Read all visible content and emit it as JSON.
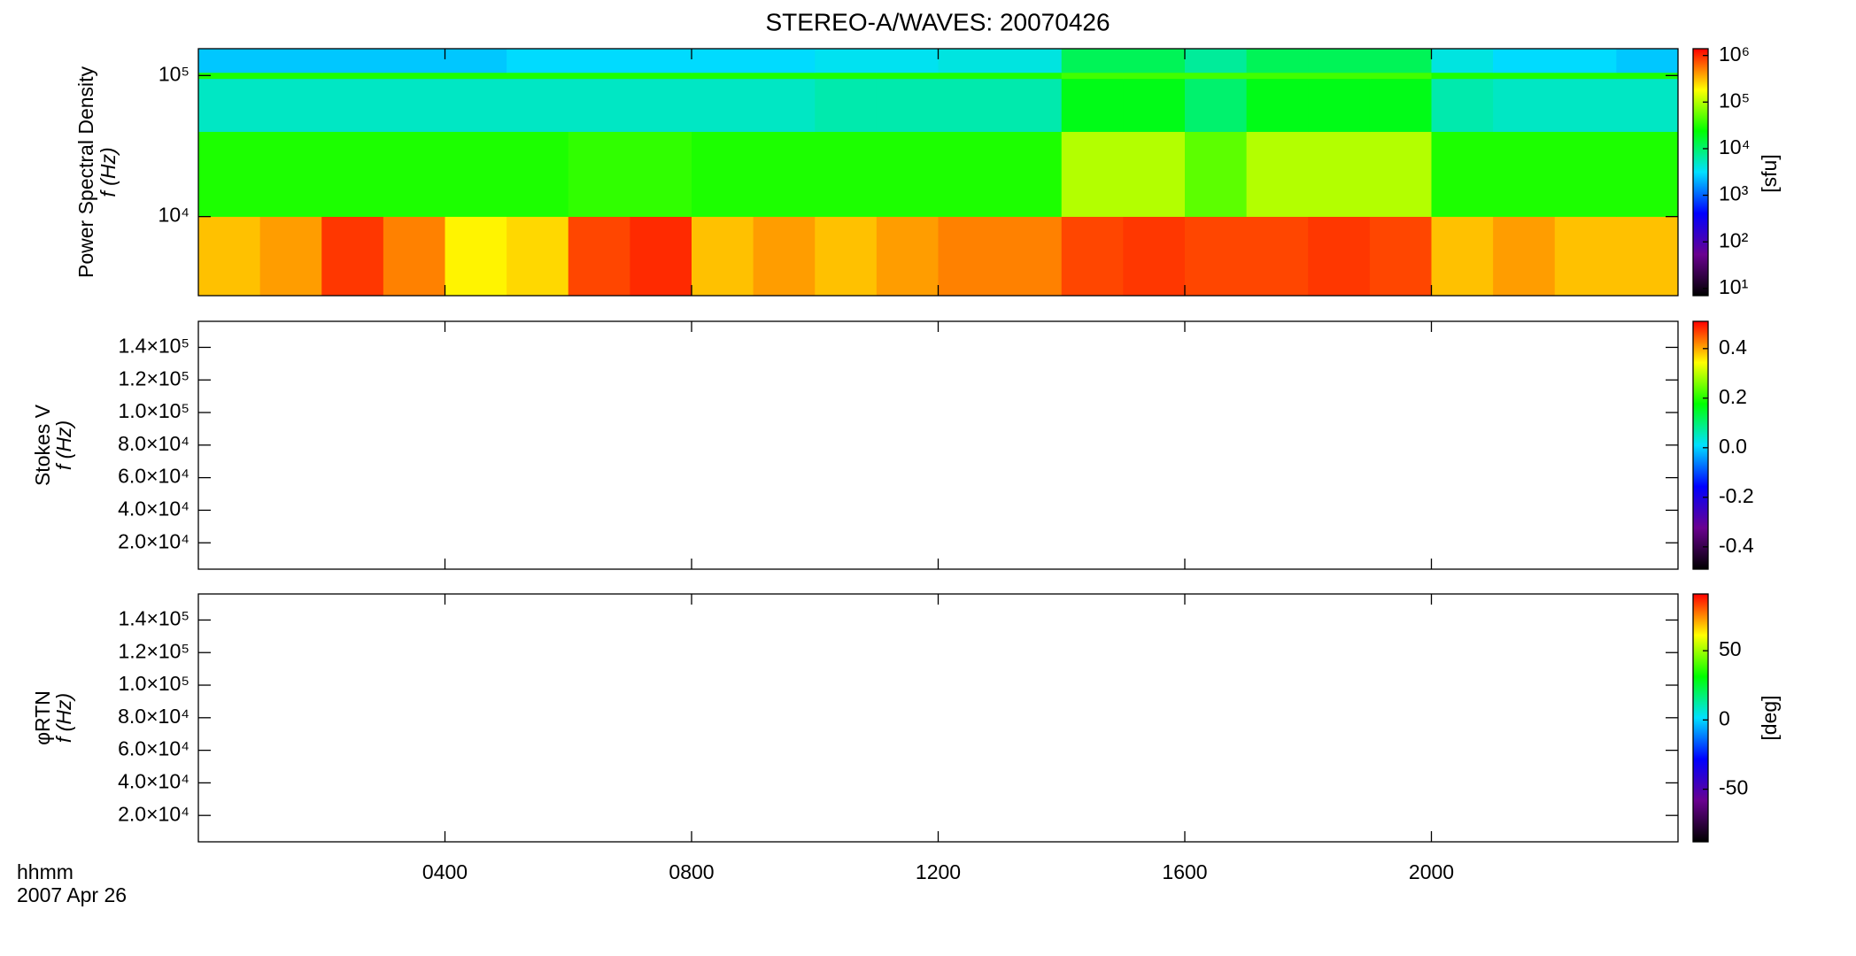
{
  "chart_data": [
    {
      "type": "heatmap",
      "title": "STEREO-A/WAVES: 20070426",
      "y_label": "Power Spectral Density",
      "y_label2": "f (Hz)",
      "xlim": [
        0,
        24
      ],
      "ylim": [
        2750,
        155000
      ],
      "ylog": true,
      "yticks": [
        {
          "value": 10000,
          "label": "10⁴"
        },
        {
          "value": 100000,
          "label": "10⁵"
        }
      ],
      "x_edges": [
        0,
        1,
        2,
        3,
        4,
        5,
        6,
        7,
        8,
        9,
        10,
        11,
        12,
        13,
        14,
        15,
        16,
        17,
        18,
        19,
        20,
        21,
        22,
        23,
        24
      ],
      "y_edges": [
        2750,
        10000,
        40000,
        95000,
        105000,
        155000
      ],
      "z": [
        [
          300000,
          400000,
          900000,
          500000,
          200000,
          250000,
          800000,
          1000000,
          300000,
          400000,
          300000,
          400000,
          500000,
          500000,
          800000,
          900000,
          800000,
          800000,
          900000,
          800000,
          300000,
          400000,
          300000,
          300000
        ],
        [
          30000,
          30000,
          30000,
          30000,
          30000,
          30000,
          35000,
          35000,
          30000,
          30000,
          30000,
          30000,
          30000,
          30000,
          100000,
          100000,
          50000,
          100000,
          100000,
          100000,
          30000,
          30000,
          30000,
          30000
        ],
        [
          5000,
          5000,
          5000,
          5000,
          5000,
          5000,
          5000,
          5000,
          5000,
          5000,
          6000,
          6000,
          6000,
          6000,
          20000,
          20000,
          10000,
          20000,
          20000,
          20000,
          6000,
          5000,
          5000,
          5000
        ],
        [
          30000,
          30000,
          30000,
          30000,
          30000,
          30000,
          30000,
          30000,
          30000,
          30000,
          30000,
          30000,
          30000,
          30000,
          40000,
          40000,
          40000,
          40000,
          40000,
          40000,
          30000,
          30000,
          30000,
          30000
        ],
        [
          2500,
          2500,
          2500,
          2500,
          2500,
          3000,
          3000,
          3000,
          3000,
          3000,
          3500,
          3500,
          4000,
          4000,
          12000,
          12000,
          7000,
          12000,
          12000,
          12000,
          4000,
          3000,
          3000,
          2500
        ]
      ],
      "colorbar": {
        "lim": [
          7,
          1400000
        ],
        "log": true,
        "label": "[sfu]",
        "colormap": [
          "#000000",
          "#6a0090",
          "#0000ff",
          "#00e0ff",
          "#00ff00",
          "#ffff00",
          "#ff0000"
        ],
        "ticks": [
          {
            "value": 10,
            "label": "10¹"
          },
          {
            "value": 100,
            "label": "10²"
          },
          {
            "value": 1000,
            "label": "10³"
          },
          {
            "value": 10000,
            "label": "10⁴"
          },
          {
            "value": 100000,
            "label": "10⁵"
          },
          {
            "value": 1000000,
            "label": "10⁶"
          }
        ]
      }
    },
    {
      "type": "heatmap",
      "y_label": "Stokes V",
      "y_label2": "f (Hz)",
      "xlim": [
        0,
        24
      ],
      "ylim": [
        3800,
        156000
      ],
      "ylog": false,
      "yticks": [
        {
          "value": 20000,
          "label": "2.0×10⁴"
        },
        {
          "value": 40000,
          "label": "4.0×10⁴"
        },
        {
          "value": 60000,
          "label": "6.0×10⁴"
        },
        {
          "value": 80000,
          "label": "8.0×10⁴"
        },
        {
          "value": 100000,
          "label": "1.0×10⁵"
        },
        {
          "value": 120000,
          "label": "1.2×10⁵"
        },
        {
          "value": 140000,
          "label": "1.4×10⁵"
        }
      ],
      "colorbar": {
        "lim": [
          -0.49,
          0.51
        ],
        "log": false,
        "ticks": [
          {
            "value": -0.4,
            "label": "-0.4"
          },
          {
            "value": -0.2,
            "label": "-0.2"
          },
          {
            "value": 0,
            "label": "0.0"
          },
          {
            "value": 0.2,
            "label": "0.2"
          },
          {
            "value": 0.4,
            "label": "0.4"
          }
        ]
      }
    },
    {
      "type": "heatmap",
      "y_label": "φRTN",
      "y_label2": "f (Hz)",
      "xlim": [
        0,
        24
      ],
      "ylim": [
        3800,
        156000
      ],
      "ylog": false,
      "x_label": "hhmm",
      "date": "2007 Apr 26",
      "xticks": [
        {
          "value": 4,
          "label": "0400"
        },
        {
          "value": 8,
          "label": "0800"
        },
        {
          "value": 12,
          "label": "1200"
        },
        {
          "value": 16,
          "label": "1600"
        },
        {
          "value": 20,
          "label": "2000"
        }
      ],
      "yticks": [
        {
          "value": 20000,
          "label": "2.0×10⁴"
        },
        {
          "value": 40000,
          "label": "4.0×10⁴"
        },
        {
          "value": 60000,
          "label": "6.0×10⁴"
        },
        {
          "value": 80000,
          "label": "8.0×10⁴"
        },
        {
          "value": 100000,
          "label": "1.0×10⁵"
        },
        {
          "value": 120000,
          "label": "1.2×10⁵"
        },
        {
          "value": 140000,
          "label": "1.4×10⁵"
        }
      ],
      "colorbar": {
        "lim": [
          -88,
          91
        ],
        "log": false,
        "label": "[deg]",
        "ticks": [
          -50,
          0,
          50
        ]
      }
    }
  ]
}
